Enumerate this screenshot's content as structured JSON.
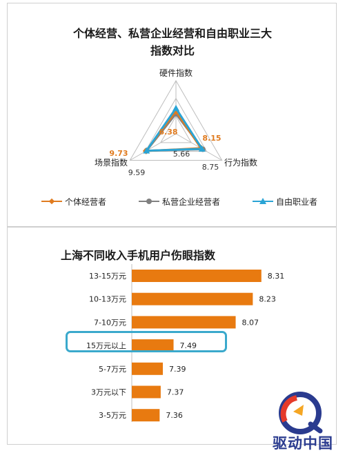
{
  "radar_chart": {
    "title_line1": "个体经营、私营企业经营和自由职业三大",
    "title_line2": "指数对比",
    "legend": [
      {
        "name": "个体经营者",
        "color": "#e07b1f",
        "marker": "diamond"
      },
      {
        "name": "私营企业经营者",
        "color": "#808080",
        "marker": "circle"
      },
      {
        "name": "自由职业者",
        "color": "#2aa4d5",
        "marker": "triangle"
      }
    ]
  },
  "bar_chart": {
    "title": "上海不同收入手机用户伤眼指数",
    "highlight_category": "15万元以上"
  },
  "branding": {
    "logo_text": "驱动中国"
  },
  "chart_data": [
    {
      "type": "radar",
      "title": "个体经营、私营企业经营和自由职业三大指数对比",
      "axes": [
        "硬件指数",
        "行为指数",
        "场景指数"
      ],
      "max": 15,
      "series": [
        {
          "name": "个体经营者",
          "values": [
            6.38,
            8.15,
            9.73
          ],
          "color": "#e07b1f"
        },
        {
          "name": "私营企业经营者",
          "values": [
            5.66,
            8.75,
            9.59
          ],
          "color": "#808080"
        },
        {
          "name": "自由职业者",
          "values": [
            7.2,
            8.5,
            9.6
          ],
          "color": "#2aa4d5"
        }
      ],
      "data_labels": [
        {
          "text": "6.38",
          "color": "#e07b1f"
        },
        {
          "text": "8.15",
          "color": "#e07b1f"
        },
        {
          "text": "9.73",
          "color": "#e07b1f"
        },
        {
          "text": "5.66",
          "color": "#333333"
        },
        {
          "text": "8.75",
          "color": "#333333"
        },
        {
          "text": "9.59",
          "color": "#333333"
        }
      ]
    },
    {
      "type": "bar",
      "orientation": "horizontal",
      "title": "上海不同收入手机用户伤眼指数",
      "categories": [
        "13-15万元",
        "10-13万元",
        "7-10万元",
        "15万元以上",
        "5-7万元",
        "3万元以下",
        "3-5万元"
      ],
      "values": [
        8.31,
        8.23,
        8.07,
        7.49,
        7.39,
        7.37,
        7.36
      ],
      "value_labels": [
        "8.31",
        "8.23",
        "8.07",
        "7.49",
        "7.39",
        "7.37",
        "7.36"
      ],
      "color": "#e87a10",
      "xlim": [
        7.1,
        8.35
      ]
    }
  ]
}
